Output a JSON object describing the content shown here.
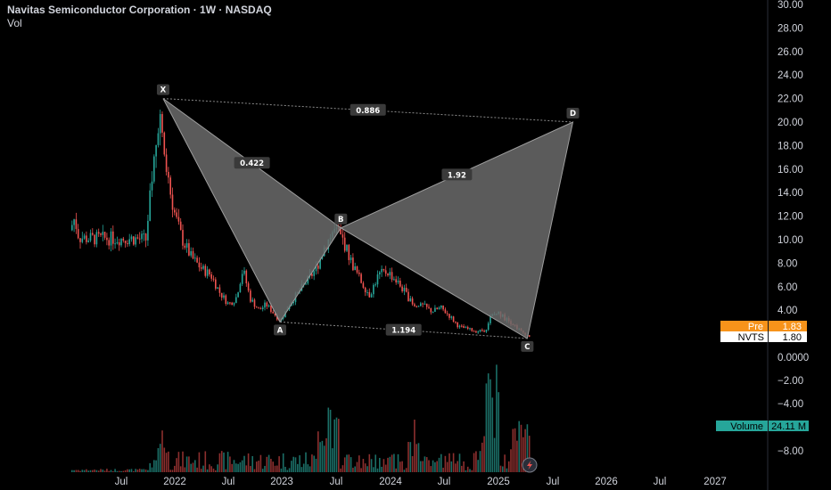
{
  "header": {
    "title": "Navitas Semiconductor Corporation · 1W · NASDAQ",
    "volume_label": "Vol"
  },
  "chart_data": {
    "type": "candlestick",
    "price_axis": {
      "ticks": [
        30,
        28,
        26,
        24,
        22,
        20,
        18,
        16,
        14,
        12,
        10,
        8,
        6,
        4
      ],
      "format": "0.00"
    },
    "volume_axis": {
      "ticks": [
        0,
        -2,
        -4,
        -8
      ],
      "labels": [
        "0.0000",
        "−2.00",
        "−4.00",
        "−8.00"
      ]
    },
    "time_axis": {
      "labels": [
        "Jul",
        "2022",
        "Jul",
        "2023",
        "Jul",
        "2024",
        "Jul",
        "2025",
        "Jul",
        "2026",
        "Jul",
        "2027"
      ]
    },
    "harmonic_pattern": {
      "points": [
        {
          "label": "X",
          "date": "2021-11-22",
          "price": 22.0
        },
        {
          "label": "A",
          "date": "2022-12-26",
          "price": 3.0
        },
        {
          "label": "B",
          "date": "2023-07-17",
          "price": 11.0
        },
        {
          "label": "C",
          "date": "2025-04-07",
          "price": 1.6
        },
        {
          "label": "D",
          "date": "2025-09-08",
          "price": 20.0
        }
      ],
      "ratios": [
        {
          "label": "0.886",
          "between": [
            "X",
            "D"
          ]
        },
        {
          "label": "0.422",
          "between": [
            "X",
            "B"
          ]
        },
        {
          "label": "1.92",
          "between": [
            "B",
            "D"
          ]
        },
        {
          "label": "1.194",
          "between": [
            "A",
            "C"
          ]
        }
      ],
      "fill_color": "#6b6b6b"
    },
    "price_tags": [
      {
        "name": "Pre",
        "value": "1.83",
        "color": "#f7931a"
      },
      {
        "name": "NVTS",
        "value": "1.80",
        "color": "#ffffff"
      }
    ],
    "volume_tag": {
      "name": "Volume",
      "value": "24.11 M",
      "color": "#26a69a"
    },
    "colors": {
      "up": "#26a69a",
      "down": "#ef5350",
      "background": "#000000"
    }
  }
}
